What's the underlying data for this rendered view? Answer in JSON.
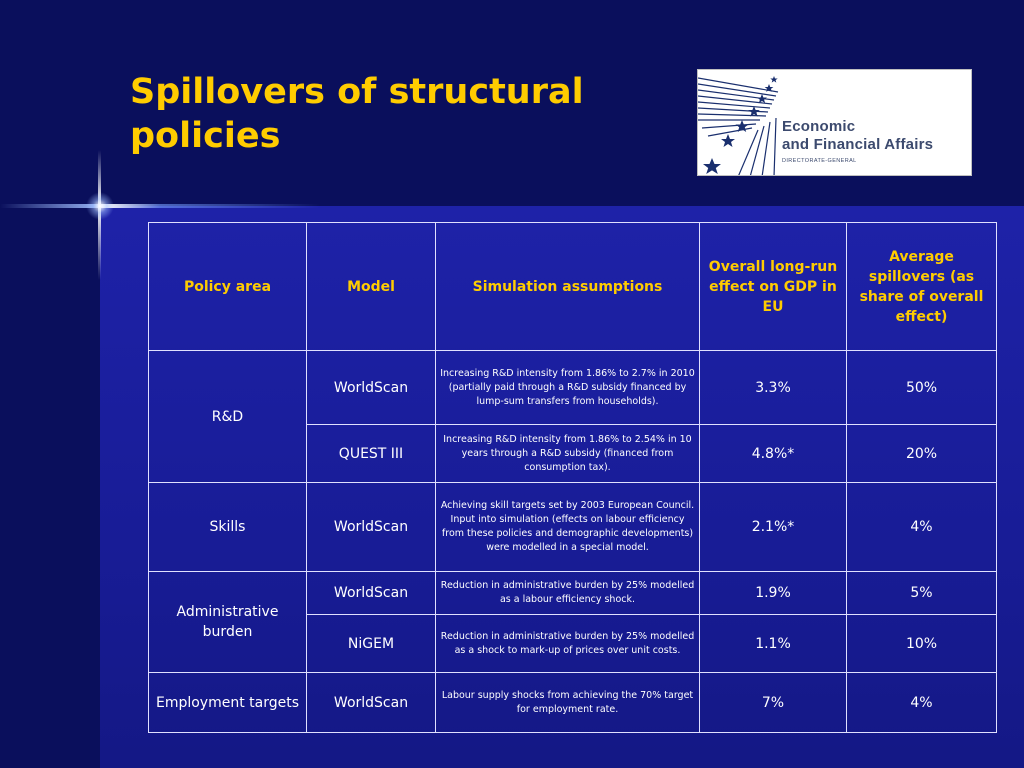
{
  "slide": {
    "title": "Spillovers of structural policies"
  },
  "logo": {
    "line1": "Economic",
    "line2": "and Financial Affairs",
    "subtitle": "DIRECTORATE-GENERAL",
    "colors": {
      "stars": "#1a2f6e",
      "text": "#3c4a6e"
    }
  },
  "table": {
    "headers": {
      "policy_area": "Policy area",
      "model": "Model",
      "assumptions": "Simulation assumptions",
      "gdp_effect": "Overall long-run effect on GDP in EU",
      "spillovers": "Average spillovers (as share of overall effect)"
    },
    "groups": [
      {
        "area": "R&D",
        "rows": [
          {
            "model": "WorldScan",
            "assumptions": "Increasing R&D intensity from 1.86% to 2.7% in 2010 (partially paid through a R&D subsidy financed by lump-sum transfers from households).",
            "gdp": "3.3%",
            "spill": "50%"
          },
          {
            "model": "QUEST III",
            "assumptions": "Increasing R&D intensity from 1.86% to 2.54% in 10 years through a R&D subsidy (financed from consumption tax).",
            "gdp": "4.8%*",
            "spill": "20%"
          }
        ]
      },
      {
        "area": "Skills",
        "rows": [
          {
            "model": "WorldScan",
            "assumptions": "Achieving skill targets set by 2003 European Council. Input into simulation (effects on labour efficiency from these policies and demographic developments) were modelled in a special model.",
            "gdp": "2.1%*",
            "spill": "4%"
          }
        ]
      },
      {
        "area": "Administrative burden",
        "rows": [
          {
            "model": "WorldScan",
            "assumptions": "Reduction in administrative burden by 25% modelled as a labour efficiency shock.",
            "gdp": "1.9%",
            "spill": "5%"
          },
          {
            "model": "NiGEM",
            "assumptions": "Reduction in administrative burden by 25% modelled as a shock to mark-up of prices over unit costs.",
            "gdp": "1.1%",
            "spill": "10%"
          }
        ]
      },
      {
        "area": "Employment targets",
        "rows": [
          {
            "model": "WorldScan",
            "assumptions": "Labour supply shocks from achieving the 70% target for employment rate.",
            "gdp": "7%",
            "spill": "4%"
          }
        ]
      }
    ]
  },
  "colors": {
    "title": "#ffcc00",
    "background": "#1a1a8c",
    "band": "#0a0f5c",
    "border": "#e0e0ff"
  }
}
